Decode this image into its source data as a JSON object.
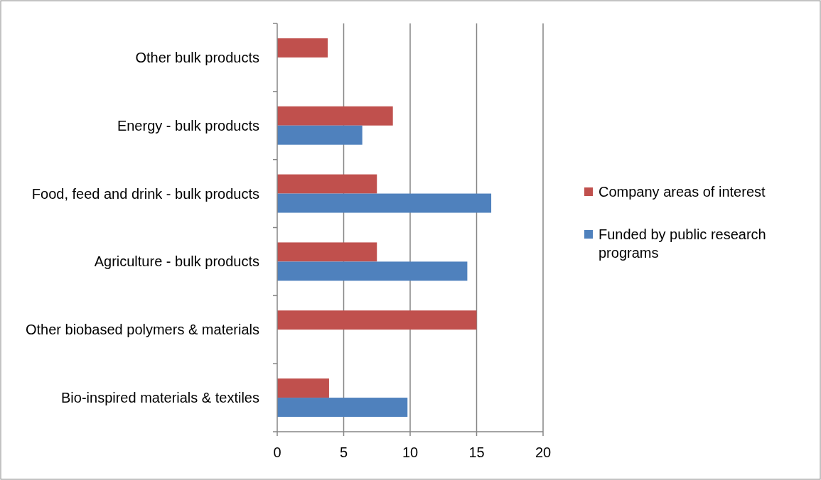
{
  "chart_data": {
    "type": "bar",
    "orientation": "horizontal",
    "categories": [
      "Other bulk products",
      "Energy - bulk products",
      "Food, feed and drink - bulk products",
      "Agriculture - bulk products",
      "Other biobased polymers & materials",
      "Bio-inspired materials & textiles"
    ],
    "series": [
      {
        "name": "Company areas of interest",
        "color": "#c0504d",
        "values": [
          3.8,
          8.7,
          7.5,
          7.5,
          15.0,
          3.9
        ]
      },
      {
        "name": "Funded by public research programs",
        "color": "#4f81bd",
        "values": [
          null,
          6.4,
          16.1,
          14.3,
          null,
          9.8
        ]
      }
    ],
    "xlim": [
      0,
      20
    ],
    "xticks": [
      0,
      5,
      10,
      15,
      20
    ],
    "grid": "x",
    "legend": "right"
  }
}
